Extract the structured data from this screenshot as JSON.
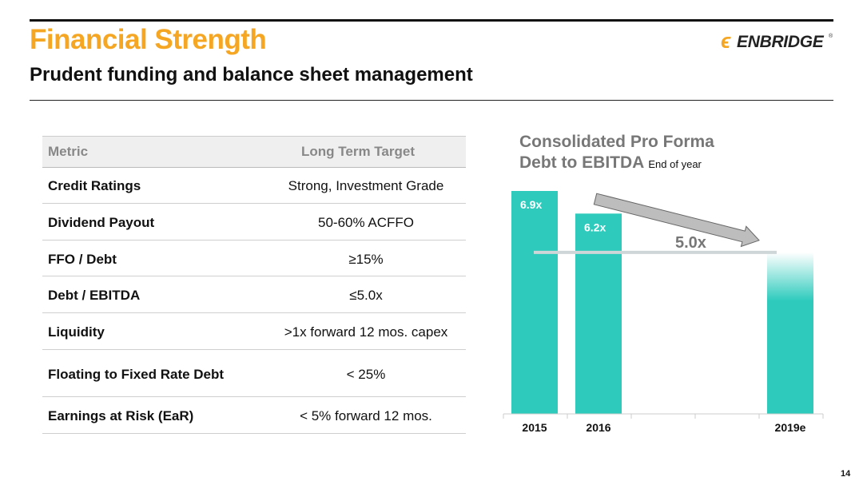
{
  "header": {
    "title": "Financial Strength",
    "subtitle": "Prudent funding and balance sheet management",
    "logo_text": "ENBRIDGE",
    "logo_tm": "®"
  },
  "table": {
    "col_metric": "Metric",
    "col_target": "Long Term Target",
    "rows": [
      {
        "metric": "Credit Ratings",
        "target": "Strong, Investment Grade"
      },
      {
        "metric": "Dividend Payout",
        "target": "50-60% ACFFO"
      },
      {
        "metric": "FFO / Debt",
        "target": "≥15%"
      },
      {
        "metric": "Debt / EBITDA",
        "target": "≤5.0x"
      },
      {
        "metric": "Liquidity",
        "target": ">1x forward 12 mos. capex"
      },
      {
        "metric": "Floating to Fixed Rate Debt",
        "target": "< 25%"
      },
      {
        "metric": "Earnings at Risk (EaR)",
        "target": "< 5% forward 12 mos."
      }
    ]
  },
  "chart_data": {
    "type": "bar",
    "title_line1": "Consolidated Pro Forma",
    "title_line2": "Debt to EBITDA",
    "title_note": "End of year",
    "categories": [
      "2015",
      "2016",
      "",
      "",
      "2019e"
    ],
    "values": [
      6.9,
      6.2,
      null,
      null,
      5.0
    ],
    "data_labels": [
      "6.9x",
      "6.2x",
      "",
      "",
      ""
    ],
    "target_line": {
      "value": 5.0,
      "label": "5.0x"
    },
    "ylim": [
      0,
      6.9
    ],
    "bar_color": "#2ecbbd",
    "target_line_color": "#cfd6d8",
    "arrow_color": "#bdbdbd",
    "last_bar_faded_top": true
  },
  "colors": {
    "accent": "#f5a623",
    "teal": "#2ecbbd"
  },
  "footer": {
    "page_number": "14"
  }
}
